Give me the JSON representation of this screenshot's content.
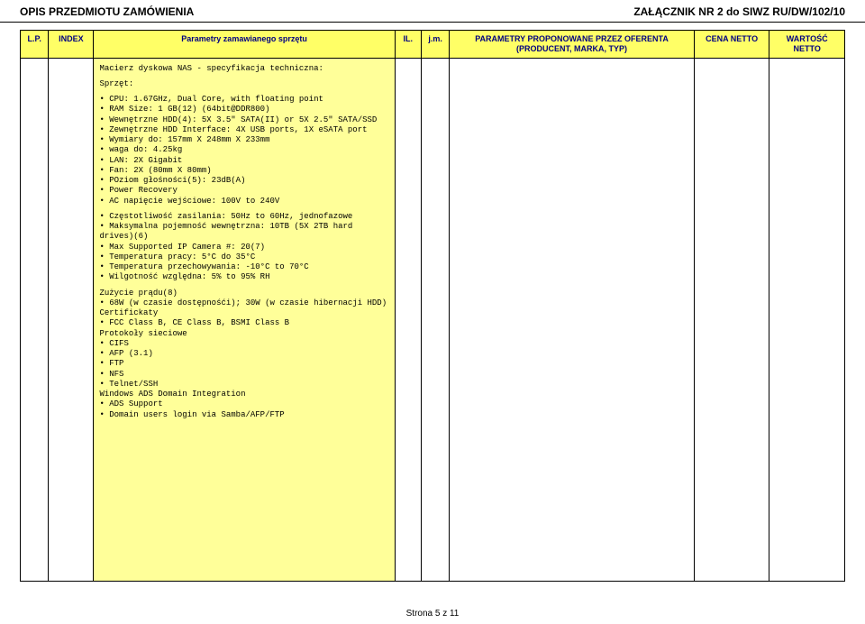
{
  "header": {
    "left": "OPIS PRZEDMIOTU ZAMÓWIENIA",
    "right": "ZAŁĄCZNIK NR 2 do SIWZ RU/DW/102/10"
  },
  "table": {
    "headers": {
      "lp": "L.P.",
      "index": "INDEX",
      "param": "Parametry zamawianego sprzętu",
      "il": "IL.",
      "jm": "j.m.",
      "offer": "PARAMETRY PROPONOWANE PRZEZ OFERENTA (PRODUCENT, MARKA, TYP)",
      "cena": "CENA NETTO",
      "wart": "WARTOŚĆ NETTO"
    }
  },
  "spec": {
    "title": "Macierz dyskowa NAS - specyfikacja techniczna:",
    "sprzet_label": "Sprzęt:",
    "lines1": [
      "• CPU: 1.67GHz, Dual Core, with floating point",
      "• RAM Size: 1 GB(12) (64bit@DDR800)",
      "• Wewnętrzne HDD(4): 5X 3.5\" SATA(II) or 5X 2.5\" SATA/SSD",
      "• Zewnętrzne HDD Interface: 4X USB ports, 1X eSATA port",
      "• Wymiary do: 157mm X 248mm X 233mm",
      "• waga do: 4.25kg",
      "• LAN: 2X Gigabit",
      "• Fan: 2X (80mm X 80mm)",
      "• POziom głośności(5): 23dB(A)",
      "• Power Recovery",
      "• AC napięcie wejściowe: 100V to 240V"
    ],
    "lines2": [
      "• Częstotliwość zasilania: 50Hz to 60Hz, jednofazowe",
      "• Maksymalna pojemność wewnętrzna: 10TB (5X 2TB hard drives)(6)",
      "• Max Supported IP Camera #: 20(7)",
      "• Temperatura pracy: 5°C do 35°C",
      "• Temperatura przechowywania: -10°C to 70°C",
      "• Wilgotność względna: 5% to 95% RH"
    ],
    "lines3": [
      "Zużycie prądu(8)",
      "• 68W (w czasie dostępnośći); 30W (w czasie hibernacji HDD)",
      "Certifickaty",
      "• FCC Class B, CE Class B, BSMI Class B",
      "Protokoły sieciowe",
      "• CIFS",
      "• AFP (3.1)",
      "• FTP",
      "• NFS",
      "• Telnet/SSH",
      "Windows ADS Domain Integration",
      "• ADS Support",
      "• Domain users login via Samba/AFP/FTP"
    ]
  },
  "footer": "Strona 5 z 11"
}
